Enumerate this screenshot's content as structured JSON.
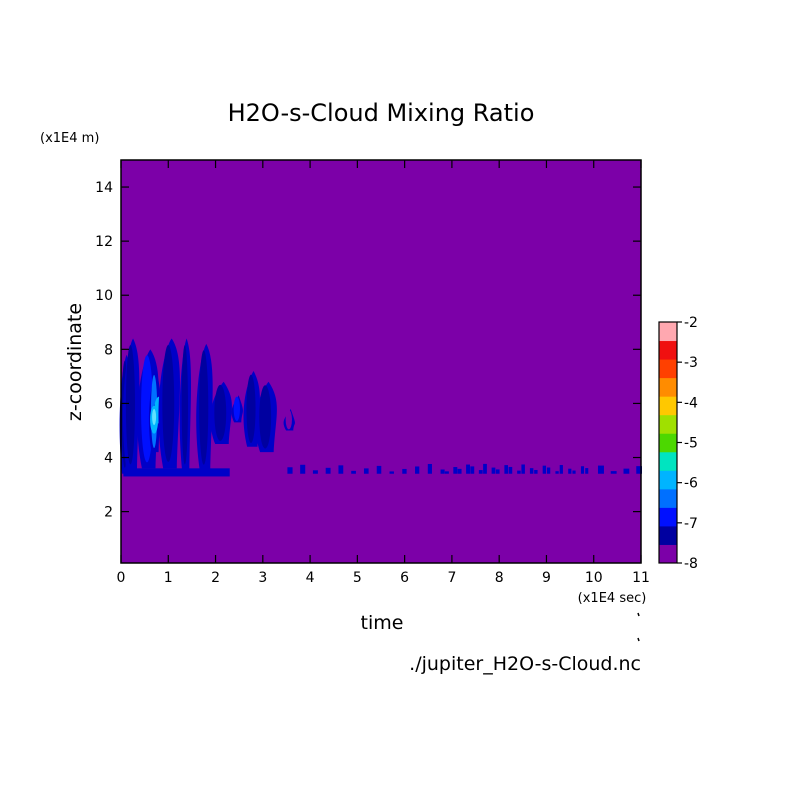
{
  "chart_data": {
    "type": "heatmap",
    "title": "H2O-s-Cloud Mixing Ratio",
    "xlabel": "time",
    "ylabel": "z-coordinate",
    "x_unit": "(x1E4 sec)",
    "y_unit": "(x1E4 m)",
    "source_file": "./jupiter_H2O-s-Cloud.nc",
    "xlim": [
      0,
      11
    ],
    "ylim": [
      0.1,
      15
    ],
    "x_ticks": [
      "0",
      "1",
      "2",
      "3",
      "4",
      "5",
      "6",
      "7",
      "8",
      "9",
      "10",
      "11"
    ],
    "y_ticks": [
      "2",
      "4",
      "6",
      "8",
      "10",
      "12",
      "14"
    ],
    "colorbar": {
      "ticks": [
        "-2",
        "-3",
        "-4",
        "-5",
        "-6",
        "-7",
        "-8"
      ],
      "levels": [
        -8,
        -7.5,
        -7,
        -6.5,
        -6,
        -5.5,
        -5,
        -4.5,
        -4,
        -3.5,
        -3,
        -2.5,
        -2
      ],
      "colors": [
        "#7c00a8",
        "#0000a0",
        "#0010ff",
        "#0070ff",
        "#00b4ff",
        "#00e4c0",
        "#4cd800",
        "#a0e000",
        "#ffc800",
        "#ff8c00",
        "#ff4000",
        "#f01010",
        "#ffa8b0"
      ]
    },
    "background_value": -8,
    "cloud_base_z": 3.3,
    "cloud_features": [
      {
        "t": 0.08,
        "zmin": 3.4,
        "zmax": 7.8,
        "value": -7.2
      },
      {
        "t": 0.2,
        "zmin": 3.5,
        "zmax": 8.4,
        "value": -7.3
      },
      {
        "t": 0.55,
        "zmin": 3.6,
        "zmax": 8.0,
        "value": -7.0
      },
      {
        "t": 0.7,
        "zmin": 4.2,
        "zmax": 7.2,
        "value": -6.4
      },
      {
        "t": 0.8,
        "zmin": 5.2,
        "zmax": 6.3,
        "value": -5.8
      },
      {
        "t": 1.0,
        "zmin": 3.6,
        "zmax": 8.4,
        "value": -7.1
      },
      {
        "t": 1.35,
        "zmin": 3.5,
        "zmax": 8.4,
        "value": -7.2
      },
      {
        "t": 1.75,
        "zmin": 3.5,
        "zmax": 8.2,
        "value": -7.3
      },
      {
        "t": 2.1,
        "zmin": 4.5,
        "zmax": 6.8,
        "value": -7.3
      },
      {
        "t": 2.45,
        "zmin": 5.3,
        "zmax": 6.3,
        "value": -6.9
      },
      {
        "t": 2.75,
        "zmin": 4.4,
        "zmax": 7.2,
        "value": -7.5
      },
      {
        "t": 3.05,
        "zmin": 4.2,
        "zmax": 6.8,
        "value": -7.5
      },
      {
        "t": 3.55,
        "zmin": 5.0,
        "zmax": 5.8,
        "value": -7.6
      }
    ],
    "grid": false,
    "legend": "colorbar-right"
  }
}
